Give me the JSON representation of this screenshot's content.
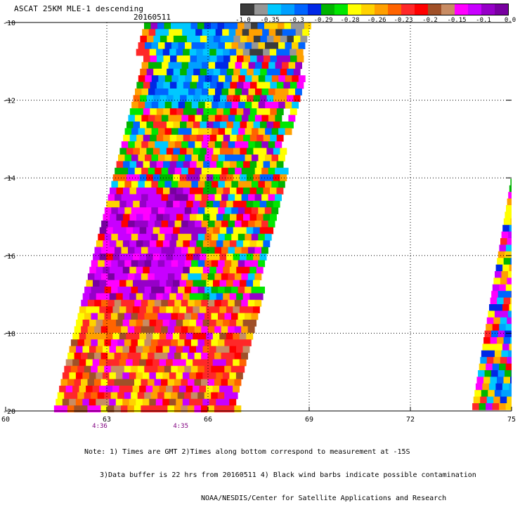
{
  "title": "ASCAT 25KM MLE-1 descending",
  "date": "20160511",
  "colorbar": {
    "colors": [
      "#3c3c3c",
      "#969696",
      "#00c8ff",
      "#00a0ff",
      "#0064ff",
      "#0028e6",
      "#00b400",
      "#00e600",
      "#ffff00",
      "#ffd200",
      "#ffa000",
      "#ff6400",
      "#ff2828",
      "#ff0000",
      "#a05028",
      "#c88c64",
      "#ff00ff",
      "#c800ff",
      "#9600c8",
      "#7800a0"
    ],
    "labels": [
      "-1.0",
      "-0.35",
      "-0.3",
      "-0.29",
      "-0.28",
      "-0.26",
      "-0.23",
      "-0.2",
      "-0.15",
      "-0.1",
      "0.0"
    ]
  },
  "map": {
    "lat_labels": [
      "-10",
      "-12",
      "-14",
      "-16",
      "-18",
      "-20"
    ],
    "lon_labels": [
      "60",
      "63",
      "66",
      "69",
      "72",
      "75"
    ],
    "time_labels": [
      {
        "text": "4:36",
        "lon": 63.0
      },
      {
        "text": "4:35",
        "lon": 65.4
      }
    ],
    "time_label_color": "#800080"
  },
  "notes": [
    "Note: 1) Times are GMT 2)Times along bottom correspond to measurement at -15S",
    "3)Data buffer is 22 hrs from 20160511 4) Black wind barbs indicate possible contamination",
    "NOAA/NESDIS/Center for Satellite Applications and Research"
  ]
}
